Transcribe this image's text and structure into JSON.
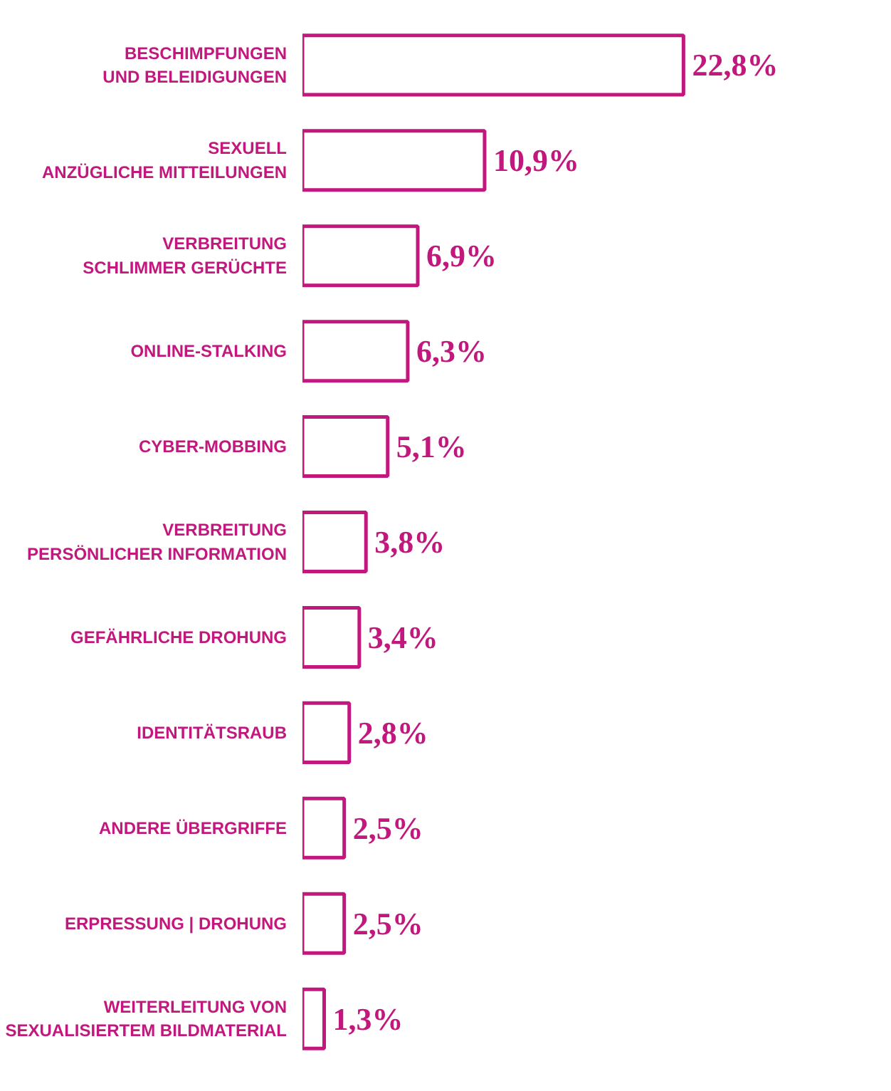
{
  "chart_data": {
    "type": "bar",
    "orientation": "horizontal",
    "color": "#c2187e",
    "categories": [
      "BESCHIMPFUNGEN\nUND BELEIDIGUNGEN",
      "SEXUELL\nANZÜGLICHE MITTEILUNGEN",
      "VERBREITUNG\nSCHLIMMER GERÜCHTE",
      "ONLINE-STALKING",
      "CYBER-MOBBING",
      "VERBREITUNG\nPERSÖNLICHER INFORMATION",
      "GEFÄHRLICHE DROHUNG",
      "IDENTITÄTSRAUB",
      "ANDERE ÜBERGRIFFE",
      "ERPRESSUNG | DROHUNG",
      "WEITERLEITUNG VON\nSEXUALISIERTEM BILDMATERIAL"
    ],
    "values": [
      22.8,
      10.9,
      6.9,
      6.3,
      5.1,
      3.8,
      3.4,
      2.8,
      2.5,
      2.5,
      1.3
    ],
    "value_labels": [
      "22,8%",
      "10,9%",
      "6,9%",
      "6,3%",
      "5,1%",
      "3,8%",
      "3,4%",
      "2,8%",
      "2,5%",
      "2,5%",
      "1,3%"
    ]
  }
}
